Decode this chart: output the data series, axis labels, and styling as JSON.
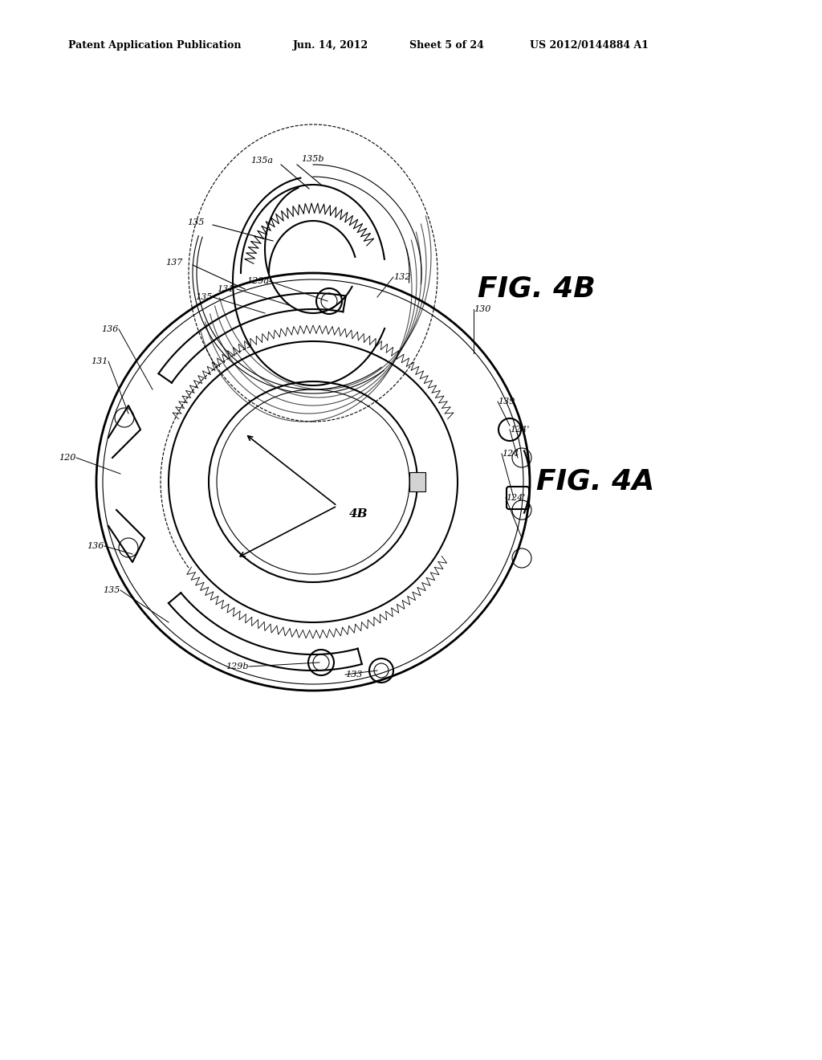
{
  "background_color": "#ffffff",
  "line_color": "#000000",
  "header_text": "Patent Application Publication",
  "header_date": "Jun. 14, 2012",
  "header_sheet": "Sheet 5 of 24",
  "header_patent": "US 2012/0144884 A1",
  "fig4b_label": "FIG. 4B",
  "fig4a_label": "FIG. 4A",
  "fig4b_ref_label": "4B"
}
